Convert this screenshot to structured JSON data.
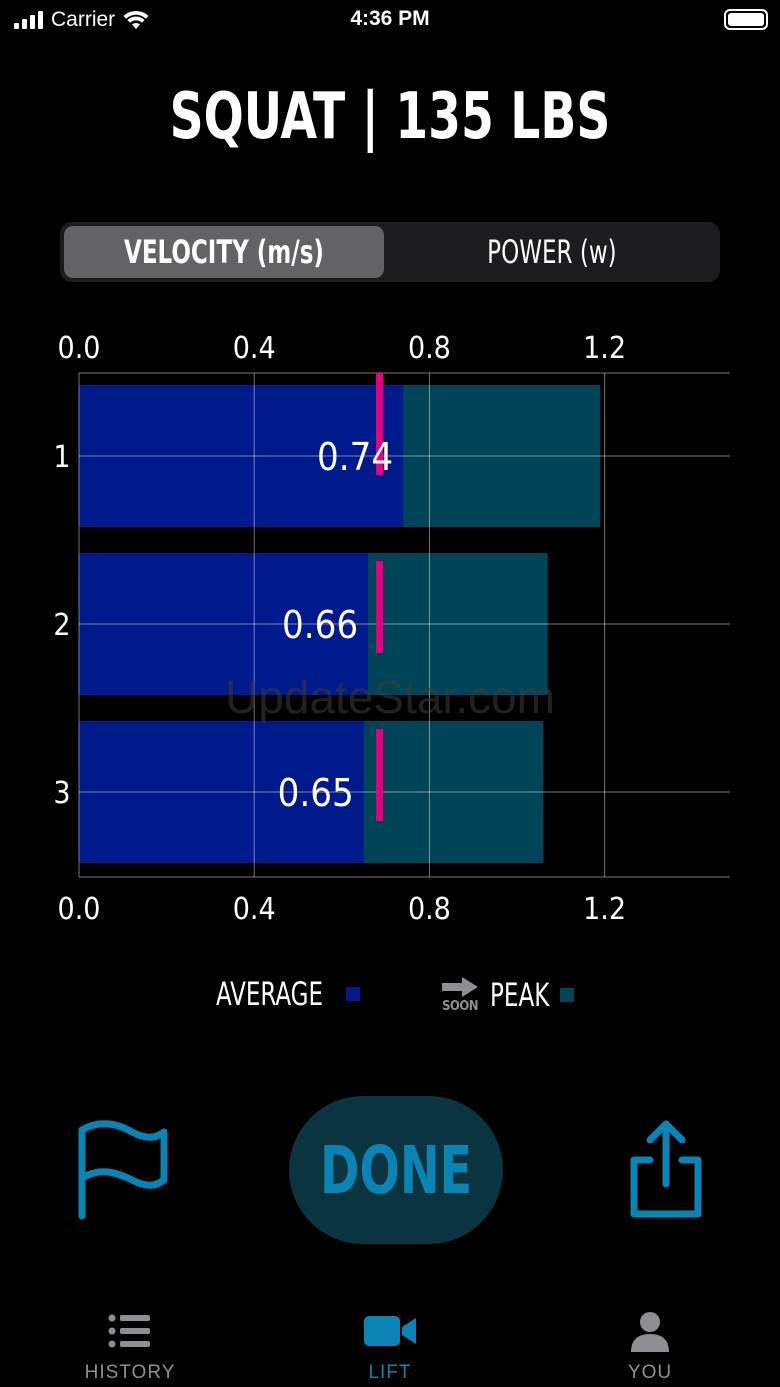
{
  "status_bar": {
    "carrier": "Carrier",
    "time": "4:36 PM"
  },
  "title": "SQUAT | 135 LBS",
  "segment": {
    "options": [
      "VELOCITY (m/s)",
      "POWER (w)"
    ],
    "selected": "VELOCITY (m/s)"
  },
  "chart_data": {
    "type": "bar",
    "orientation": "horizontal",
    "categories": [
      "1",
      "2",
      "3"
    ],
    "series": [
      {
        "name": "AVERAGE",
        "values": [
          0.74,
          0.66,
          0.65
        ],
        "color": "#001a8c"
      },
      {
        "name": "PEAK",
        "values": [
          1.19,
          1.07,
          1.06
        ],
        "color": "#004557"
      }
    ],
    "marker_values": [
      0.685,
      0.685,
      0.685
    ],
    "marker_color": "#e6007e",
    "data_labels": [
      "0.74",
      "0.66",
      "0.65"
    ],
    "x_ticks": [
      "0.0",
      "0.4",
      "0.8",
      "1.2"
    ],
    "xlim": [
      0,
      1.5
    ],
    "grid": true,
    "legend_placement": "bottom"
  },
  "legend": {
    "average_label": "AVERAGE",
    "peak_label": "PEAK",
    "soon_label": "SOON",
    "average_color": "#001a8c",
    "peak_color": "#004557"
  },
  "actions": {
    "done_label": "DONE",
    "flag_icon": "flag-icon",
    "share_icon": "share-icon"
  },
  "tabbar": {
    "items": [
      {
        "label": "HISTORY",
        "icon": "list-icon",
        "active": false
      },
      {
        "label": "LIFT",
        "icon": "video-camera-icon",
        "active": true
      },
      {
        "label": "YOU",
        "icon": "person-icon",
        "active": false
      }
    ],
    "active_color": "#0a84b4",
    "inactive_color": "#8e8e93"
  },
  "watermark": "UpdateStar.com"
}
